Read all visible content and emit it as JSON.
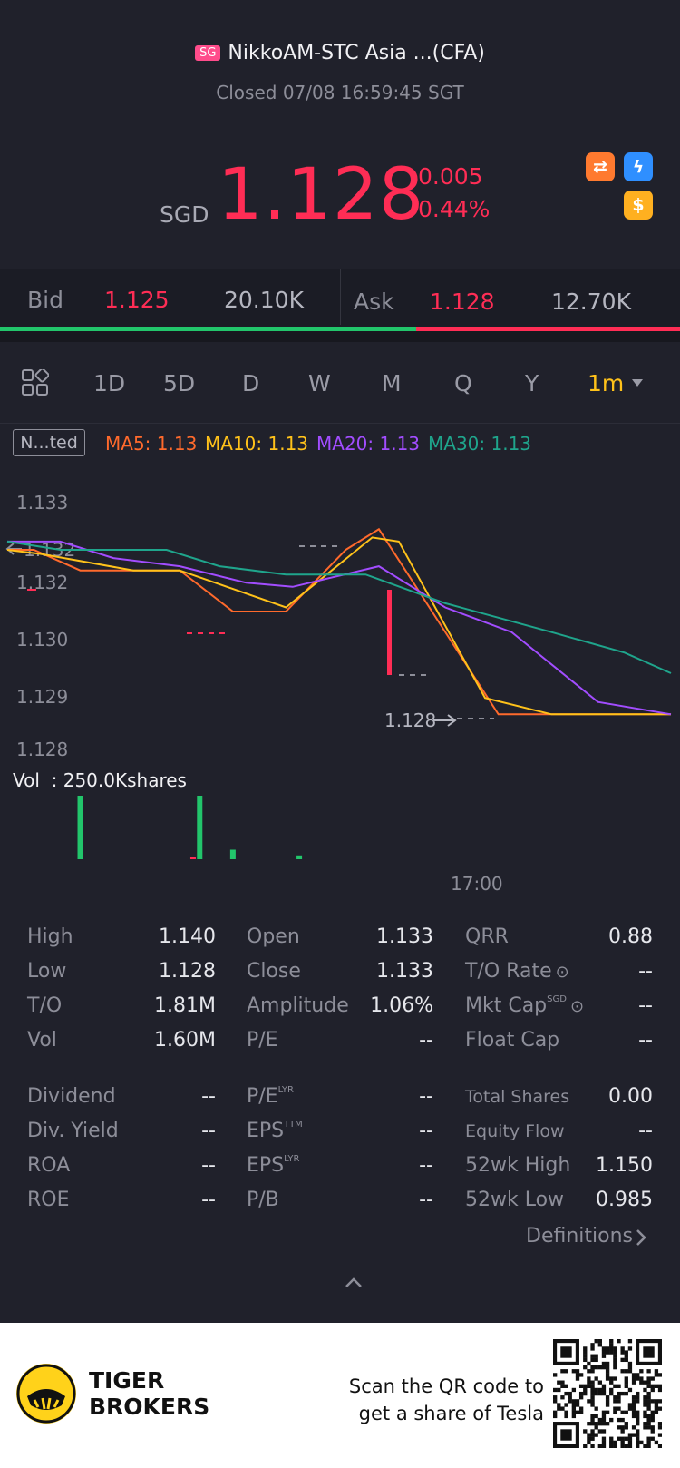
{
  "header": {
    "badge": "SG",
    "title": "NikkoAM-STC Asia ...(CFA)",
    "status": "Closed 07/08 16:59:45 SGT"
  },
  "quote": {
    "currency": "SGD",
    "price": "1.128",
    "change": "-0.005",
    "change_pct": "-0.44%",
    "icons": [
      "orange-swap-icon",
      "lightning-icon",
      "dollar-icon"
    ],
    "icon_glyphs": [
      "⇄",
      "ϟ",
      "$"
    ]
  },
  "bidask": {
    "bid_label": "Bid",
    "bid_price": "1.125",
    "bid_size": "20.10K",
    "ask_label": "Ask",
    "ask_price": "1.128",
    "ask_size": "12.70K",
    "bid_ratio": 0.612
  },
  "tabs": [
    "1D",
    "5D",
    "D",
    "W",
    "M",
    "Q",
    "Y",
    "1m"
  ],
  "indicator_box": "N...ted",
  "ma": {
    "ma5": "MA5: 1.13",
    "ma10": "MA10: 1.13",
    "ma20": "MA20: 1.13",
    "ma30": "MA30: 1.13"
  },
  "colors": {
    "up": "#22c56b",
    "down": "#ff2d55",
    "ma5": "#ff6a2c",
    "ma10": "#ffc21a",
    "ma20": "#a24dff",
    "ma30": "#1fa58c",
    "accent": "#ffc21a"
  },
  "chart": {
    "y_ticks": [
      "1.133",
      "1.132",
      "1.132",
      "1.130",
      "1.129",
      "1.128"
    ],
    "left_marker": "1.132",
    "last_price_label": "1.128",
    "volume_label": "Vol  : 250.0Kshares",
    "time_label": "17:00"
  },
  "chart_data": {
    "type": "line",
    "ylim": [
      1.1275,
      1.1335
    ],
    "series": [
      {
        "name": "MA5",
        "x": [
          0,
          0.04,
          0.11,
          0.26,
          0.34,
          0.42,
          0.51,
          0.56,
          0.74,
          1.0
        ],
        "values": [
          1.132,
          1.132,
          1.1315,
          1.1315,
          1.1305,
          1.1305,
          1.132,
          1.1325,
          1.128,
          1.128
        ]
      },
      {
        "name": "MA10",
        "x": [
          0,
          0.05,
          0.19,
          0.26,
          0.42,
          0.55,
          0.59,
          0.72,
          0.82,
          1.0
        ],
        "values": [
          1.132,
          1.1319,
          1.1315,
          1.1315,
          1.1306,
          1.1323,
          1.1322,
          1.1284,
          1.128,
          1.128
        ]
      },
      {
        "name": "MA20",
        "x": [
          0,
          0.08,
          0.16,
          0.26,
          0.36,
          0.43,
          0.56,
          0.66,
          0.76,
          0.89,
          1.0
        ],
        "values": [
          1.1322,
          1.1322,
          1.1318,
          1.1316,
          1.1312,
          1.1311,
          1.1316,
          1.1306,
          1.13,
          1.1283,
          1.128
        ]
      },
      {
        "name": "MA30",
        "x": [
          0,
          0.08,
          0.24,
          0.32,
          0.42,
          0.54,
          0.66,
          0.82,
          0.93,
          1.0
        ],
        "values": [
          1.1322,
          1.132,
          1.132,
          1.1316,
          1.1314,
          1.1314,
          1.1307,
          1.13,
          1.1295,
          1.129
        ]
      }
    ],
    "volume": [
      {
        "x": 0.11,
        "v": 1.0,
        "up": true
      },
      {
        "x": 0.28,
        "v": 0.01,
        "up": false
      },
      {
        "x": 0.29,
        "v": 1.0,
        "up": true
      },
      {
        "x": 0.34,
        "v": 0.15,
        "up": true
      },
      {
        "x": 0.44,
        "v": 0.06,
        "up": true
      }
    ]
  },
  "stats": {
    "col1": [
      [
        "High",
        "1.140"
      ],
      [
        "Low",
        "1.128"
      ],
      [
        "T/O",
        "1.81M"
      ],
      [
        "Vol",
        "1.60M"
      ]
    ],
    "col2": [
      [
        "Open",
        "1.133"
      ],
      [
        "Close",
        "1.133"
      ],
      [
        "Amplitude",
        "1.06%"
      ],
      [
        "P/E",
        "--"
      ]
    ],
    "col3": [
      [
        "QRR",
        "0.88"
      ],
      [
        "T/O Rate",
        "--"
      ],
      [
        "Mkt Cap",
        "--"
      ],
      [
        "Float Cap",
        "--"
      ]
    ],
    "col1b": [
      [
        "Dividend",
        "--"
      ],
      [
        "Div. Yield",
        "--"
      ],
      [
        "ROA",
        "--"
      ],
      [
        "ROE",
        "--"
      ]
    ],
    "col2b": [
      [
        "P/E",
        "LYR",
        "--"
      ],
      [
        "EPS",
        "TTM",
        "--"
      ],
      [
        "EPS",
        "LYR",
        "--"
      ],
      [
        "P/B",
        "",
        "--"
      ]
    ],
    "col3b": [
      [
        "Total Shares",
        "0.00"
      ],
      [
        "Equity Flow",
        "--"
      ],
      [
        "52wk High",
        "1.150"
      ],
      [
        "52wk Low",
        "0.985"
      ]
    ],
    "mktcap_sup": "SGD",
    "definitions": "Definitions"
  },
  "footer": {
    "brand_line1": "TIGER",
    "brand_line2": "BROKERS",
    "scan_line1": "Scan the QR code to",
    "scan_line2": "get a share of Tesla"
  }
}
